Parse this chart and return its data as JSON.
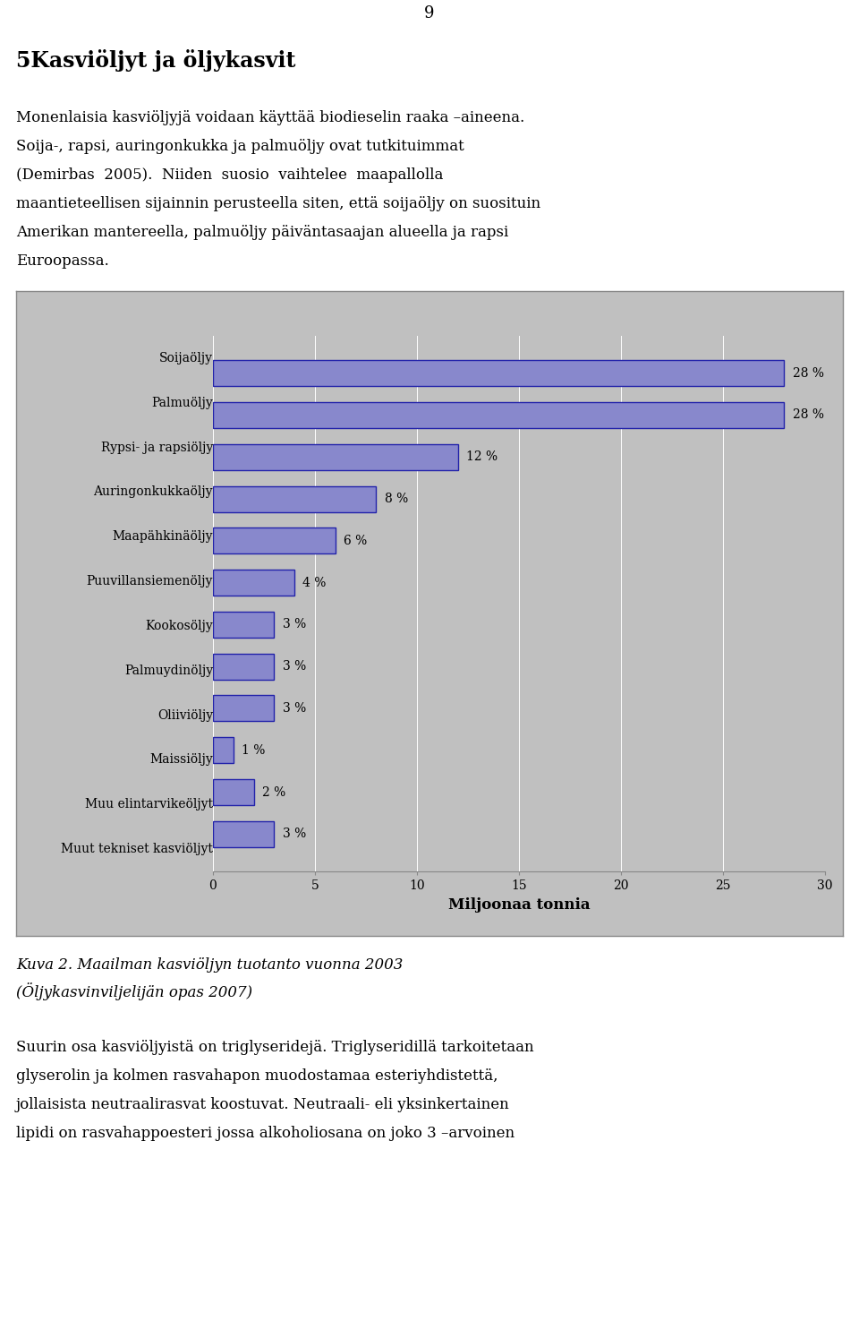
{
  "categories": [
    "Soijaöljy",
    "Palmuöljy",
    "Rypsi- ja rapsiöljy",
    "Auringonkukkaöljy",
    "Maapähkinäöljy",
    "Puuvillansiemenöljy",
    "Kookosöljy",
    "Palmuydinöljy",
    "Oliiviöljy",
    "Maissiöljy",
    "Muu elintarvikeöljyt",
    "Muut tekniset kasviöljyt"
  ],
  "values": [
    28,
    28,
    12,
    8,
    6,
    4,
    3,
    3,
    3,
    1,
    2,
    3
  ],
  "percentages": [
    "28 %",
    "28 %",
    "12 %",
    "8 %",
    "6 %",
    "4 %",
    "3 %",
    "3 %",
    "3 %",
    "1 %",
    "2 %",
    "3 %"
  ],
  "bar_color": "#8888cc",
  "bar_edge_color": "#2222aa",
  "plot_bg_color": "#c0c0c0",
  "xlabel": "Miljoonaa tonnia",
  "xlim": [
    0,
    30
  ],
  "xticks": [
    0,
    5,
    10,
    15,
    20,
    25,
    30
  ],
  "page_num": "9",
  "section_title": "5Kasviöljyt ja öljykasvit",
  "text_line1": "Monenlaisia kasviöljyjä voidaan käyttää biodieselin raaka –aineena.",
  "text_line2": "Soija-, rapsi, auringonkukka ja palmuöljy ovat tutkituimmat",
  "text_line3": "(Demirbas  2005).  Niiden  suosio  vaihtelee  maapallolla",
  "text_line4": "maantieteellisen sijainnin perusteella siten, että soijaöljy on suosituin",
  "text_line5": "Amerikan mantereella, palmuöljy päiväntasaajan alueella ja rapsi",
  "text_line6": "Euroopassa.",
  "caption_line1": "Kuva 2. Maailman kasviöljyn tuotanto vuonna 2003",
  "caption_line2": "(Öljykasvinviljelijän opas 2007)",
  "para3_line1": "Suurin osa kasviöljyistä on triglyseridejä. Triglyseridillä tarkoitetaan",
  "para3_line2": "glyserolin ja kolmen rasvahapon muodostamaa esteriyhdistettä,",
  "para3_line3": "jollaisista neutraalirasvat koostuvat. Neutraali- eli yksinkertainen",
  "para3_line4": "lipidi on rasvahappoesteri jossa alkoholiosana on joko 3 –arvoinen"
}
